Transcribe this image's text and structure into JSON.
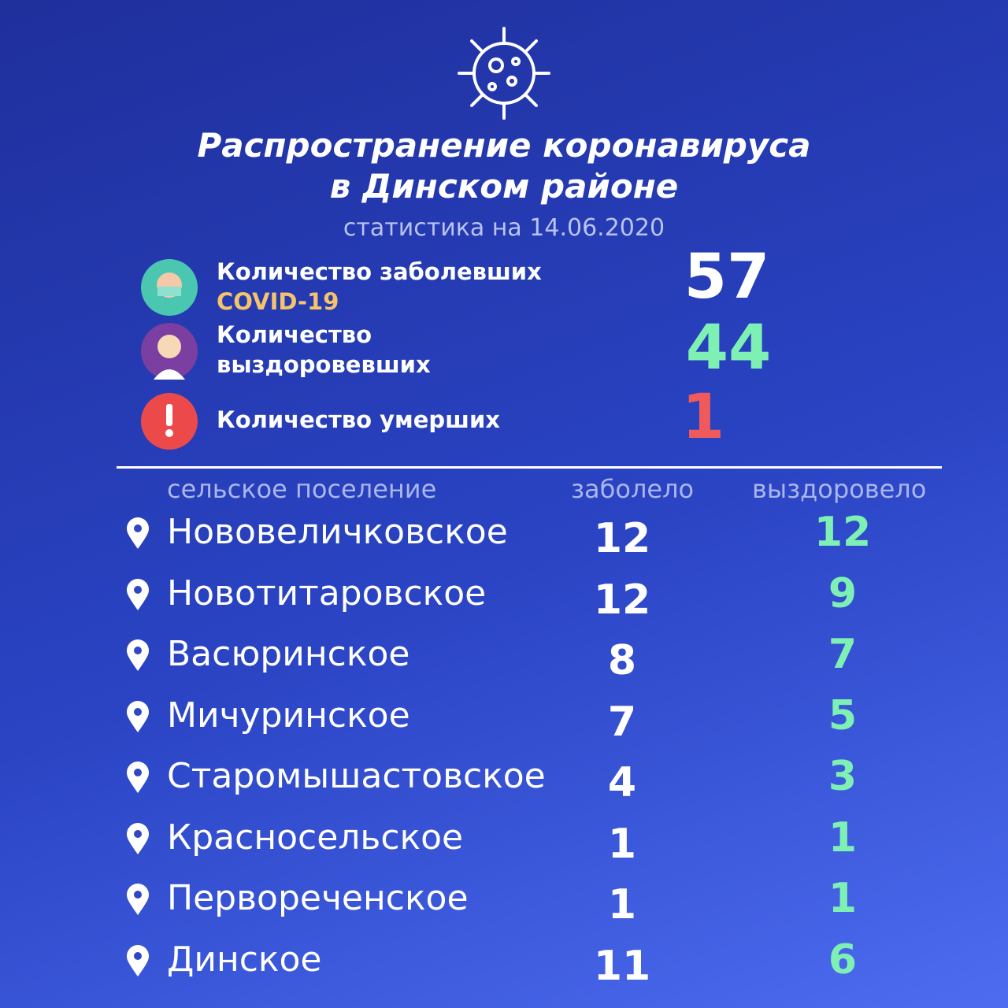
{
  "header": {
    "title": [
      "Распространение коронавируса",
      "в Динском районе"
    ],
    "subtitle": "статистика на 14.06.2020"
  },
  "summary": [
    {
      "label": [
        "Количество заболевших",
        "COVID-19"
      ],
      "value": 57
    },
    {
      "label": [
        "Количество",
        "выздоровевших"
      ],
      "value": 44
    },
    {
      "label": [
        "Количество умерших"
      ],
      "value": 1
    }
  ],
  "table": {
    "columns": [
      "сельское поселение",
      "заболело",
      "выздоровело"
    ],
    "rows": [
      [
        "Нововеличковское",
        12,
        12
      ],
      [
        "Новотитаровское",
        12,
        9
      ],
      [
        "Васюринское",
        8,
        7
      ],
      [
        "Мичуринское",
        7,
        5
      ],
      [
        "Старомышастовское",
        4,
        3
      ],
      [
        "Красносельское",
        1,
        1
      ],
      [
        "Первореченское",
        1,
        1
      ],
      [
        "Динское",
        11,
        6
      ]
    ]
  }
}
